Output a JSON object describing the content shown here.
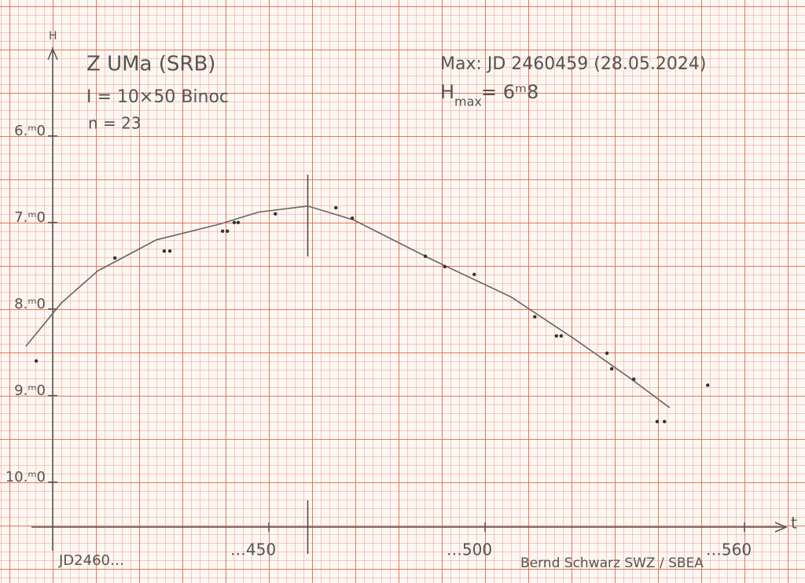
{
  "chart_data": {
    "type": "scatter",
    "title": "Z UMa (SRB)",
    "subtitle": [
      "I = 10×50 Binoc",
      "n = 23"
    ],
    "annotations": [
      "Max: JD 2460459 (28.05.2024)",
      "H",
      "max",
      " = 6ᵐ8"
    ],
    "credit": "Bernd Schwarz SWZ / SBEA",
    "xlabel": "t",
    "ylabel": "H",
    "x_prefix": "JD2460…",
    "xlim": [
      392,
      570
    ],
    "ylim": [
      10.52,
      4.95
    ],
    "xticks": [
      {
        "value": 450,
        "label": "…450"
      },
      {
        "value": 500,
        "label": "…500"
      },
      {
        "value": 560,
        "label": "…560"
      }
    ],
    "yticks": [
      {
        "value": 6,
        "label": "6.ᵐ0"
      },
      {
        "value": 7,
        "label": "7.ᵐ0"
      },
      {
        "value": 8,
        "label": "8.ᵐ0"
      },
      {
        "value": 9,
        "label": "9.ᵐ0"
      },
      {
        "value": 10,
        "label": "10.ᵐ0"
      }
    ],
    "max_x": 459,
    "color": "#333333",
    "x": [
      396.2,
      414.4,
      425.8,
      427.1,
      439.3,
      440.4,
      442.0,
      442.9,
      451.5,
      465.5,
      469.3,
      486.2,
      490.7,
      497.5,
      511.5,
      516.5,
      517.6,
      528.2,
      529.3,
      534.4,
      539.8,
      541.5,
      551.5
    ],
    "values": [
      8.6,
      7.41,
      7.33,
      7.33,
      7.1,
      7.1,
      7.0,
      7.0,
      6.9,
      6.83,
      6.95,
      7.39,
      7.51,
      7.6,
      8.09,
      8.31,
      8.31,
      8.51,
      8.69,
      8.81,
      9.3,
      9.3,
      8.88
    ],
    "fit": {
      "x": [
        393.8,
        402.0,
        410.4,
        424.0,
        438.5,
        447.6,
        459.0,
        469.6,
        487.8,
        506.0,
        520.5,
        533.3,
        542.7
      ],
      "values": [
        8.43,
        7.93,
        7.56,
        7.2,
        7.02,
        6.88,
        6.81,
        6.97,
        7.43,
        7.86,
        8.34,
        8.79,
        9.14
      ]
    }
  }
}
